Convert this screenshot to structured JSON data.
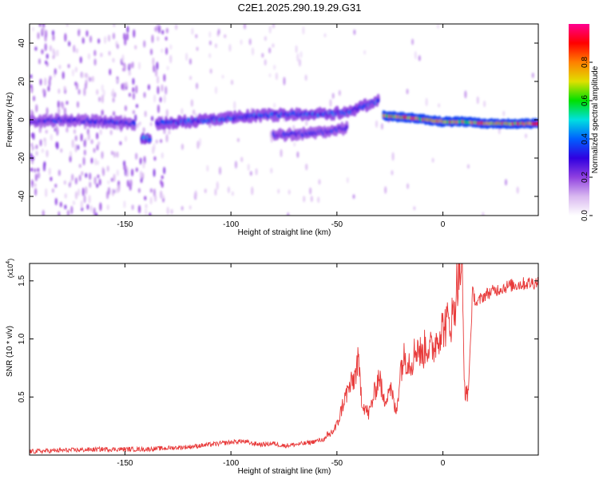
{
  "figure_title": "C2E1.2025.290.19.29.G31",
  "colors": {
    "snr_line": "#e83a3a",
    "axis": "#000000",
    "colorbar": [
      "#ffffff",
      "#d9b8f0",
      "#9040e0",
      "#3000e0",
      "#0060ff",
      "#00e0e0",
      "#00e000",
      "#e0e000",
      "#ff8000",
      "#ff0000",
      "#ff0090"
    ]
  },
  "chart_data": [
    {
      "type": "heatmap",
      "title": "",
      "xlabel": "Height of straight line (km)",
      "ylabel": "Frequency (Hz)",
      "xlim": [
        -195,
        45
      ],
      "ylim": [
        -50,
        50
      ],
      "xticks": [
        -150,
        -100,
        -50,
        0
      ],
      "yticks": [
        -40,
        -20,
        0,
        20,
        40
      ],
      "colorbar": {
        "label": "Normalized spectral amplitude",
        "range": [
          0,
          1
        ],
        "ticks": [
          0.0,
          0.2,
          0.4,
          0.6,
          0.8
        ]
      },
      "ridges": [
        {
          "x": [
            -195,
            -180,
            -160,
            -145
          ],
          "y": [
            -1,
            0,
            -1,
            -2
          ],
          "amplitude": 0.35
        },
        {
          "x": [
            -142,
            -138
          ],
          "y": [
            -10,
            -10
          ],
          "amplitude": 0.45
        },
        {
          "x": [
            -135,
            -110,
            -90,
            -70,
            -55,
            -45,
            -38,
            -30
          ],
          "y": [
            -2,
            0,
            2,
            3,
            3,
            4,
            7,
            10
          ],
          "amplitude": 0.4
        },
        {
          "x": [
            -80,
            -60,
            -45
          ],
          "y": [
            -8,
            -7,
            -4
          ],
          "amplitude": 0.35
        },
        {
          "x": [
            -28,
            -15,
            0,
            10,
            20,
            45
          ],
          "y": [
            2,
            1,
            -1,
            -1,
            -2,
            -2
          ],
          "amplitude": 0.9
        }
      ]
    },
    {
      "type": "line",
      "title": "",
      "xlabel": "Height of straight line (km)",
      "ylabel": "SNR (10 * v/v)",
      "y_multiplier": "(x10",
      "y_exponent": "4",
      "y_multiplier_close": ")",
      "xlim": [
        -195,
        45
      ],
      "ylim": [
        0.0,
        1.65
      ],
      "xticks": [
        -150,
        -100,
        -50,
        0
      ],
      "yticks": [
        0.5,
        1.0,
        1.5
      ],
      "series": [
        {
          "x": [
            -195,
            -180,
            -160,
            -150,
            -140,
            -130,
            -120,
            -110,
            -100,
            -95,
            -90,
            -85,
            -80,
            -75,
            -70,
            -65,
            -60,
            -55,
            -50,
            -47,
            -45,
            -42,
            -40,
            -38,
            -35,
            -32,
            -30,
            -28,
            -25,
            -22,
            -20,
            -18,
            -15,
            -12,
            -10,
            -8,
            -5,
            -2,
            0,
            3,
            5,
            7,
            9,
            10,
            11,
            12,
            14,
            16,
            18,
            20,
            22,
            25,
            28,
            32,
            36,
            40,
            45
          ],
          "y": [
            0.03,
            0.04,
            0.05,
            0.05,
            0.05,
            0.06,
            0.07,
            0.09,
            0.11,
            0.12,
            0.1,
            0.09,
            0.1,
            0.08,
            0.09,
            0.1,
            0.12,
            0.14,
            0.25,
            0.45,
            0.55,
            0.65,
            0.8,
            0.45,
            0.35,
            0.55,
            0.7,
            0.45,
            0.6,
            0.35,
            0.75,
            0.85,
            0.8,
            0.95,
            0.85,
            0.95,
            0.9,
            1.05,
            1.1,
            1.15,
            1.2,
            1.55,
            1.65,
            0.65,
            0.5,
            0.55,
            1.4,
            1.3,
            1.35,
            1.38,
            1.4,
            1.42,
            1.44,
            1.46,
            1.47,
            1.48,
            1.49
          ]
        }
      ]
    }
  ]
}
